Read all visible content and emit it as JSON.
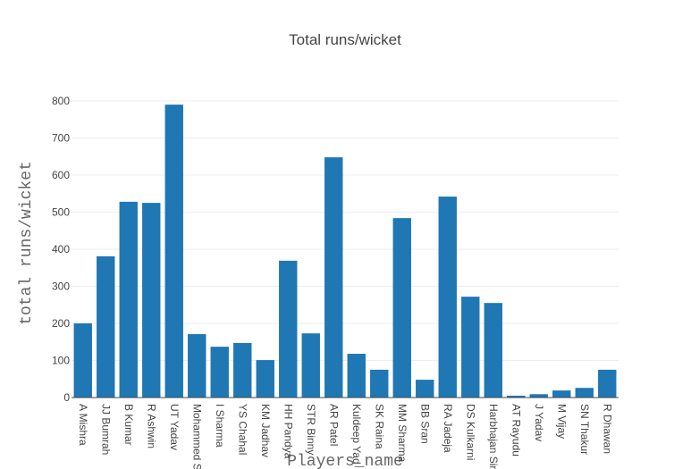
{
  "chart_data": {
    "type": "bar",
    "title": "Total runs/wicket",
    "x_label": "Players_name",
    "y_label": "total runs/wicket",
    "categories": [
      "A Mishra",
      "JJ Bumrah",
      "B Kumar",
      "R Ashwin",
      "UT Yadav",
      "Mohammed S",
      "I Sharma",
      "YS Chahal",
      "KM Jadhav",
      "HH Pandya",
      "STR Binny",
      "AR Patel",
      "Kuldeep Yad",
      "SK Raina",
      "MM Sharma",
      "BB Sran",
      "RA Jadeja",
      "DS Kulkarni",
      "Harbhajan Sin",
      "AT Rayudu",
      "J Yadav",
      "M Vijay",
      "SN Thakur",
      "R Dhawan"
    ],
    "values": [
      200,
      381,
      528,
      525,
      790,
      171,
      137,
      147,
      101,
      369,
      173,
      648,
      118,
      75,
      484,
      48,
      542,
      272,
      255,
      5,
      9,
      19,
      26,
      75
    ],
    "color": "#1f77b4",
    "ylim": [
      0,
      800
    ],
    "yticks": [
      0,
      100,
      200,
      300,
      400,
      500,
      600,
      700,
      800
    ],
    "grid": true
  }
}
